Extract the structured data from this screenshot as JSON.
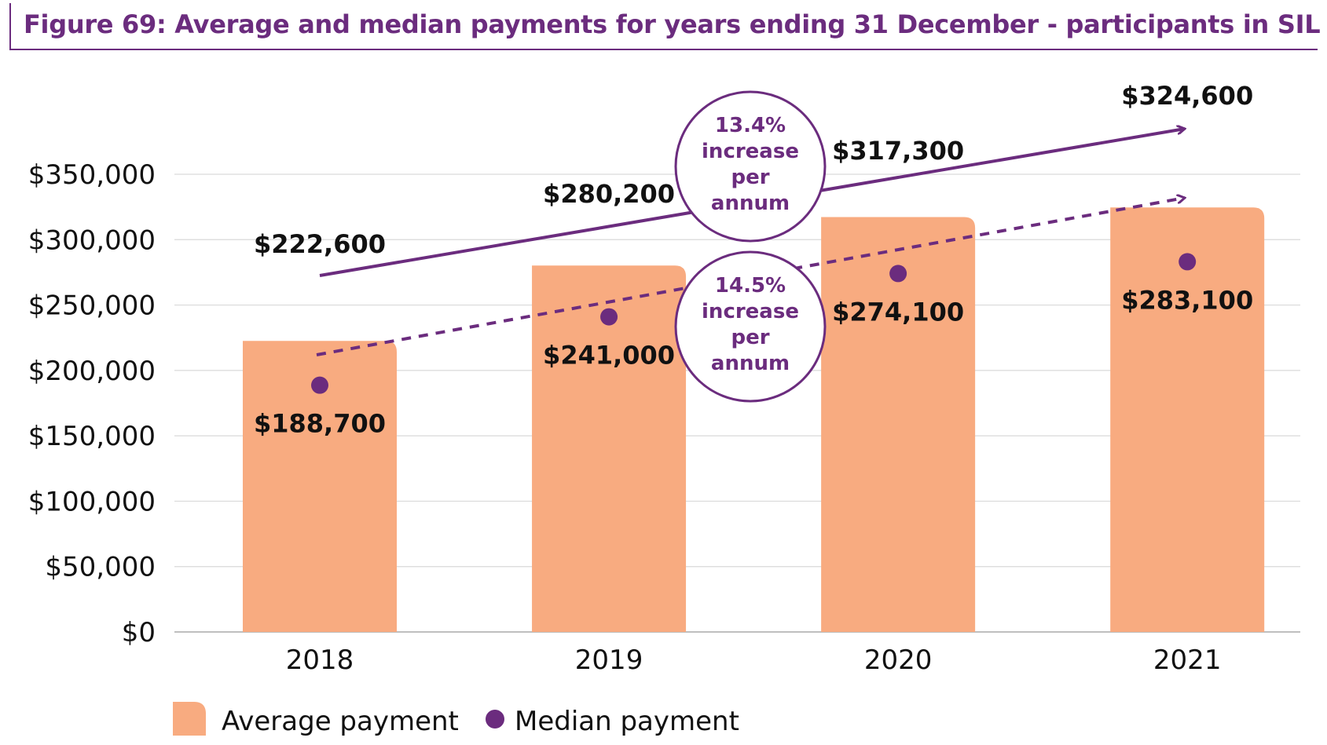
{
  "title": "Figure 69: Average and median payments for years ending 31 December - participants in SIL",
  "colors": {
    "average_bar": "#f8ab80",
    "median_marker": "#6b2c7e",
    "accent": "#6b2c7e",
    "grid": "#d9d9d9"
  },
  "chart_data": {
    "type": "bar",
    "categories": [
      "2018",
      "2019",
      "2020",
      "2021"
    ],
    "series": [
      {
        "name": "Average payment",
        "type": "bar",
        "values": [
          222600,
          280200,
          317300,
          324600
        ]
      },
      {
        "name": "Median payment",
        "type": "scatter",
        "values": [
          188700,
          241000,
          274100,
          283100
        ]
      }
    ],
    "value_labels": {
      "average": [
        "$222,600",
        "$280,200",
        "$317,300",
        "$324,600"
      ],
      "median": [
        "$188,700",
        "$241,000",
        "$274,100",
        "$283,100"
      ]
    },
    "y_ticks": [
      0,
      50000,
      100000,
      150000,
      200000,
      250000,
      300000,
      350000
    ],
    "y_tick_labels": [
      "$0",
      "$50,000",
      "$100,000",
      "$150,000",
      "$200,000",
      "$250,000",
      "$300,000",
      "$350,000"
    ],
    "ylim": [
      0,
      350000
    ],
    "xlabel": "",
    "ylabel": "",
    "grid": true,
    "legend_position": "bottom-left",
    "annotations": [
      {
        "text": [
          "13.4%",
          "increase",
          "per",
          "annum"
        ],
        "series": "Average payment",
        "style": "solid trend arrow"
      },
      {
        "text": [
          "14.5%",
          "increase",
          "per",
          "annum"
        ],
        "series": "Median payment",
        "style": "dashed trend arrow"
      }
    ]
  },
  "legend": [
    {
      "label": "Average payment",
      "icon": "rounded-square-swatch"
    },
    {
      "label": "Median payment",
      "icon": "circle-marker"
    }
  ]
}
